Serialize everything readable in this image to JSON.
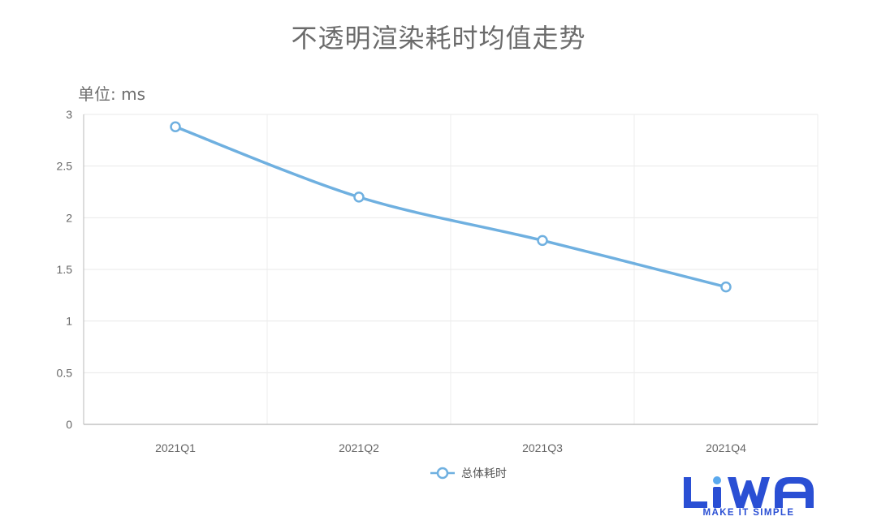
{
  "header": {
    "title": "不透明渲染耗时均值走势",
    "unit_label": "单位: ms"
  },
  "chart_data": {
    "type": "line",
    "title": "不透明渲染耗时均值走势",
    "ylabel": "单位: ms",
    "xlabel": "",
    "categories": [
      "2021Q1",
      "2021Q2",
      "2021Q3",
      "2021Q4"
    ],
    "series": [
      {
        "name": "总体耗时",
        "values": [
          2.88,
          2.2,
          1.78,
          1.33
        ],
        "color": "#6fb0e0"
      }
    ],
    "ylim": [
      0,
      3
    ],
    "yticks": [
      "0",
      "0.5",
      "1",
      "1.5",
      "2",
      "2.5",
      "3"
    ],
    "grid": true,
    "legend": "bottom-center"
  },
  "logo": {
    "wordmark": "LiWA",
    "tagline": "MAKE IT SIMPLE",
    "color": "#2a4fd4",
    "accent": "#5aa9ee"
  }
}
